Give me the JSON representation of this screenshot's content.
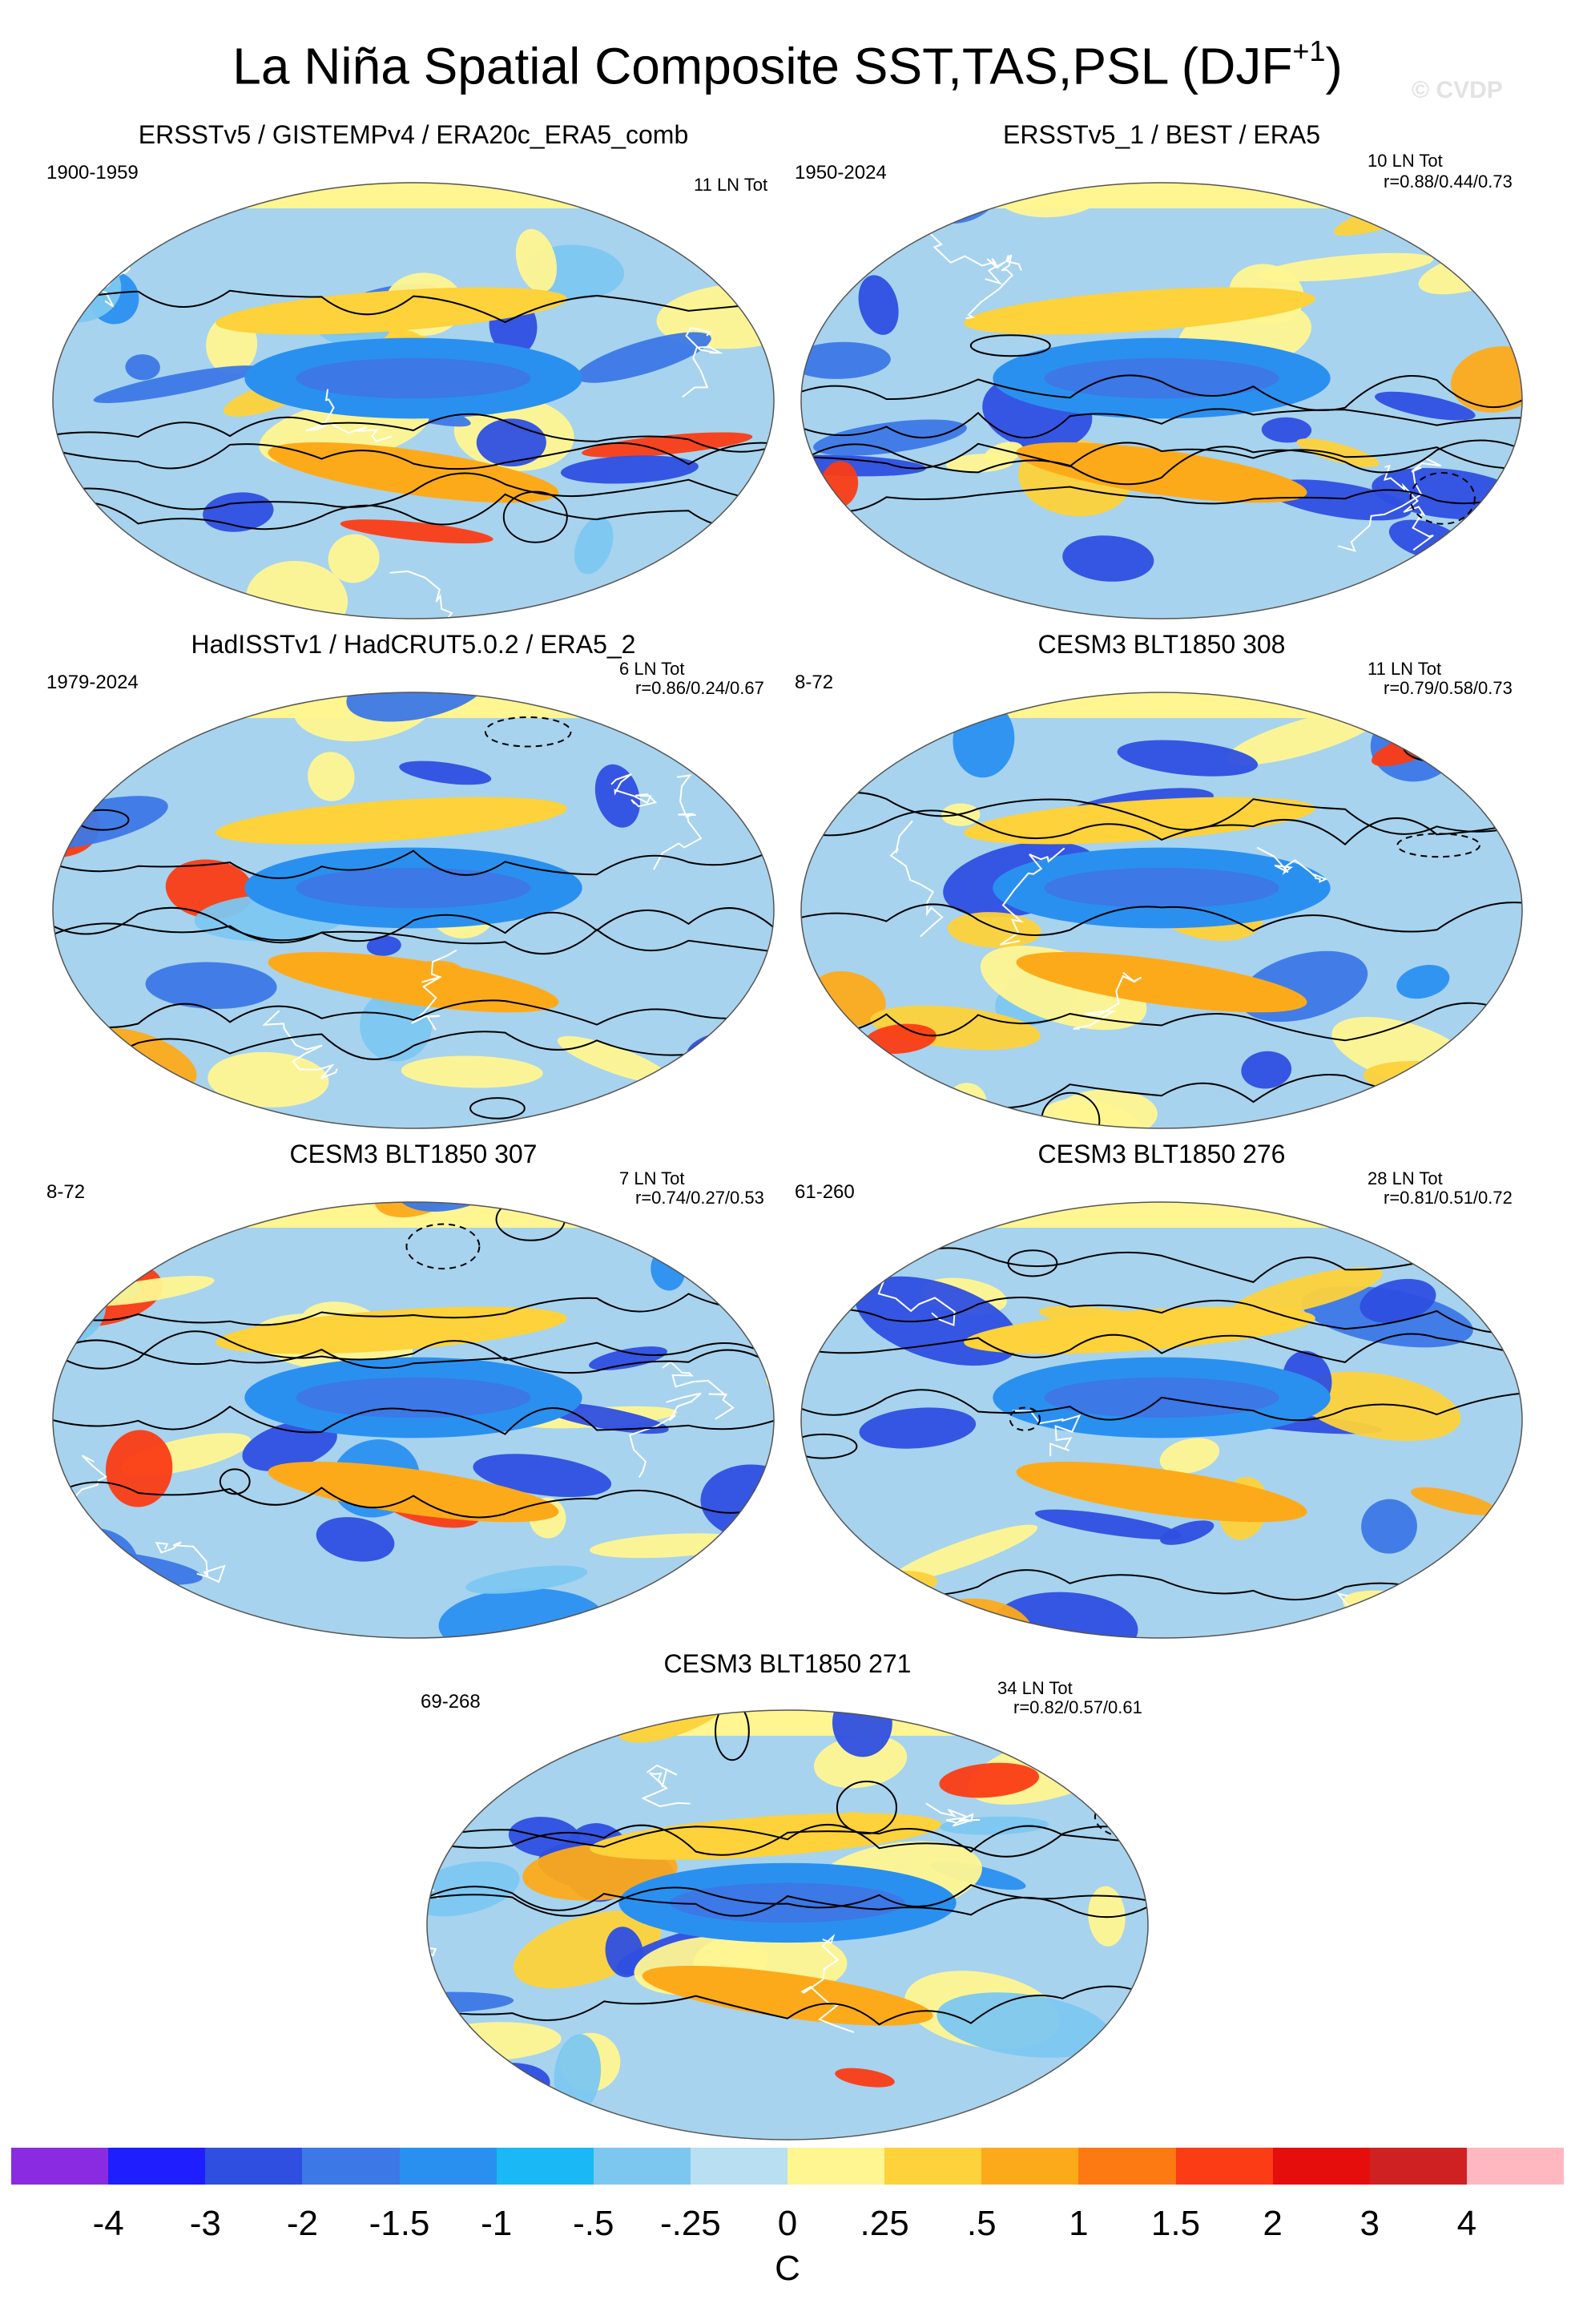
{
  "figure": {
    "title_main": "La Niña Spatial Composite SST,TAS,PSL (DJF",
    "title_sup": "+1",
    "title_end": ")",
    "watermark": "© CVDP"
  },
  "panels": [
    {
      "title": "ERSSTv5 / GISTEMPv4 / ERA20c_ERA5_comb",
      "period": "1900-1959",
      "count": "11 LN Tot",
      "corr": ""
    },
    {
      "title": "ERSSTv5_1 / BEST / ERA5",
      "period": "1950-2024",
      "count": "10 LN Tot",
      "corr": "r=0.88/0.44/0.73"
    },
    {
      "title": "HadISSTv1 / HadCRUT5.0.2 / ERA5_2",
      "period": "1979-2024",
      "count": "6 LN Tot",
      "corr": "r=0.86/0.24/0.67"
    },
    {
      "title": "CESM3 BLT1850 308",
      "period": "8-72",
      "count": "11 LN Tot",
      "corr": "r=0.79/0.58/0.73"
    },
    {
      "title": "CESM3 BLT1850 307",
      "period": "8-72",
      "count": "7 LN Tot",
      "corr": "r=0.74/0.27/0.53"
    },
    {
      "title": "CESM3 BLT1850 276",
      "period": "61-260",
      "count": "28 LN Tot",
      "corr": "r=0.81/0.51/0.72"
    },
    {
      "title": "CESM3 BLT1850 271",
      "period": "69-268",
      "count": "34 LN Tot",
      "corr": "r=0.82/0.57/0.61"
    }
  ],
  "colorbar": {
    "colors": [
      "#8a2be2",
      "#1e1eff",
      "#2e4fe0",
      "#3c78e6",
      "#2a90f0",
      "#1ab9f5",
      "#7cc7f0",
      "#b8dff2",
      "#fff591",
      "#fdd23a",
      "#fdaa1a",
      "#fd7a12",
      "#fb3c14",
      "#e60d0d",
      "#cf2121",
      "#ffb8bf"
    ],
    "ticks": [
      "-4",
      "-3",
      "-2",
      "-1.5",
      "-1",
      "-.5",
      "-.25",
      "0",
      ".25",
      ".5",
      "1",
      "1.5",
      "2",
      "3",
      "4"
    ],
    "unit": "C"
  },
  "map_palette": {
    "ocean_base": "#a7d3ee",
    "land_outline": "#ffffff",
    "contour": "#000000",
    "cool": [
      "#2e4fe0",
      "#3c78e6",
      "#2a90f0",
      "#7cc7f0"
    ],
    "warm": [
      "#fff591",
      "#fdd23a",
      "#fdaa1a",
      "#fb3c14"
    ]
  }
}
